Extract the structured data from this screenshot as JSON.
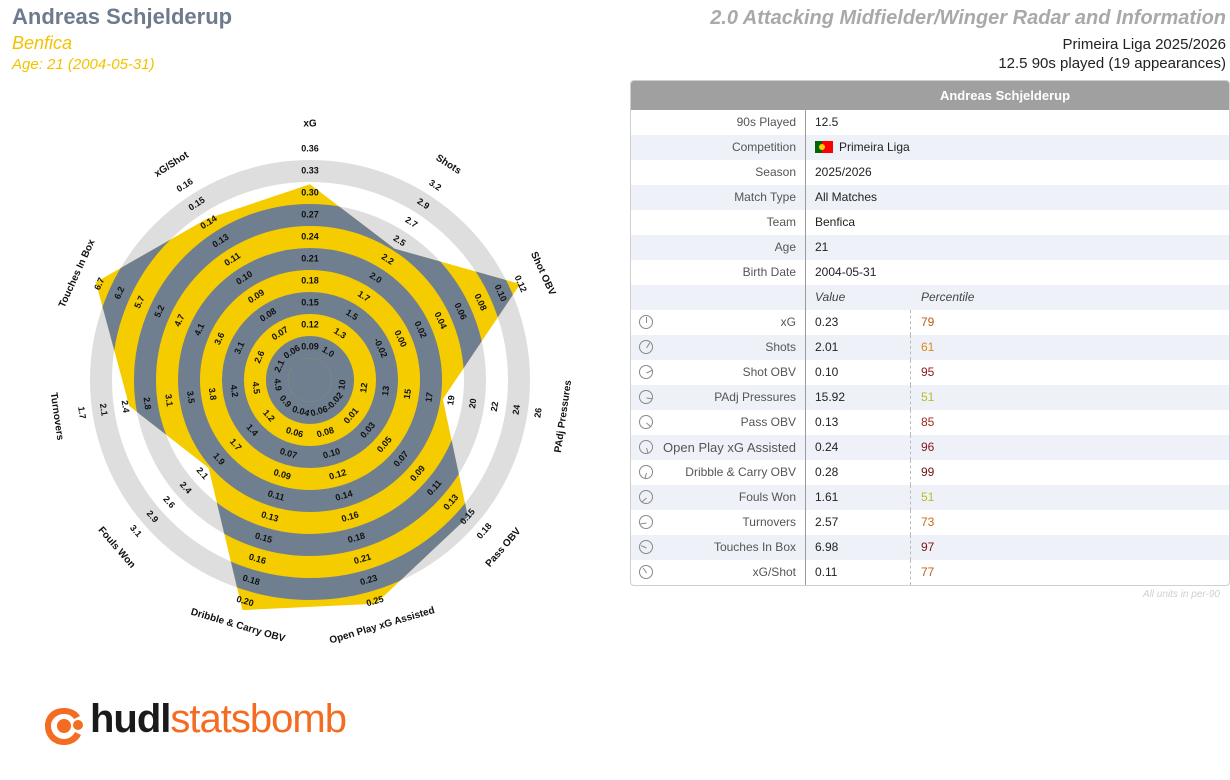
{
  "header": {
    "player_name": "Andreas Schjelderup",
    "team": "Benfica",
    "age_line": "Age: 21 (2004-05-31)",
    "radar_title": "2.0 Attacking Midfielder/Winger Radar and Information",
    "league_season": "Primeira Liga 2025/2026",
    "played": "12.5 90s played (19 appearances)"
  },
  "colors": {
    "player": "#f5cc00",
    "league": "#6f7f8f",
    "ring": "#dedede",
    "title": "#a9a9a9",
    "name": "#6d7b8d",
    "accent": "#f36c21"
  },
  "chart_data": {
    "type": "radar",
    "series": [
      {
        "name": "Andreas Schjelderup",
        "percentiles": [
          79,
          61,
          95,
          51,
          85,
          96,
          99,
          51,
          73,
          97,
          77
        ]
      }
    ],
    "axes": [
      {
        "label": "xG",
        "ticks": [
          "0.09",
          "0.12",
          "0.15",
          "0.18",
          "0.21",
          "0.24",
          "0.27",
          "0.30",
          "0.33",
          "0.36"
        ],
        "value": 0.23
      },
      {
        "label": "Shots",
        "ticks": [
          "1.0",
          "1.3",
          "1.5",
          "1.7",
          "2.0",
          "2.2",
          "2.5",
          "2.7",
          "2.9",
          "3.2"
        ],
        "value": 2.01
      },
      {
        "label": "Shot OBV",
        "ticks": [
          "-0.02",
          "0.00",
          "0.02",
          "0.04",
          "0.06",
          "0.08",
          "0.10",
          "0.12"
        ],
        "value": 0.1
      },
      {
        "label": "PAdj Pressures",
        "ticks": [
          "10",
          "12",
          "13",
          "15",
          "17",
          "19",
          "20",
          "22",
          "24",
          "26"
        ],
        "value": 15.92
      },
      {
        "label": "Pass OBV",
        "ticks": [
          "-0.02",
          "0.01",
          "0.03",
          "0.05",
          "0.07",
          "0.09",
          "0.11",
          "0.13",
          "0.15",
          "0.18"
        ],
        "value": 0.13
      },
      {
        "label": "Open Play xG Assisted",
        "ticks": [
          "0.06",
          "0.08",
          "0.10",
          "0.12",
          "0.14",
          "0.16",
          "0.18",
          "0.21",
          "0.23",
          "0.25"
        ],
        "value": 0.24
      },
      {
        "label": "Dribble & Carry OBV",
        "ticks": [
          "0.04",
          "0.06",
          "0.07",
          "0.09",
          "0.11",
          "0.13",
          "0.15",
          "0.16",
          "0.18",
          "0.20"
        ],
        "value": 0.28
      },
      {
        "label": "Fouls Won",
        "ticks": [
          "0.9",
          "1.2",
          "1.4",
          "1.7",
          "1.9",
          "2.1",
          "2.4",
          "2.6",
          "2.9",
          "3.1"
        ],
        "value": 1.61
      },
      {
        "label": "Turnovers",
        "ticks": [
          "4.9",
          "4.5",
          "4.2",
          "3.8",
          "3.5",
          "3.1",
          "2.8",
          "2.4",
          "2.1",
          "1.7"
        ],
        "value": 2.57
      },
      {
        "label": "Touches In Box",
        "ticks": [
          "2.1",
          "2.6",
          "3.1",
          "3.6",
          "4.1",
          "4.7",
          "5.2",
          "5.7",
          "6.2",
          "6.7"
        ],
        "value": 6.98
      },
      {
        "label": "xG/Shot",
        "ticks": [
          "0.06",
          "0.07",
          "0.08",
          "0.09",
          "0.10",
          "0.11",
          "0.13",
          "0.14",
          "0.15",
          "0.16"
        ],
        "value": 0.11
      }
    ],
    "league_average_percentile": 50
  },
  "table": {
    "header": "Andreas Schjelderup",
    "info": [
      {
        "label": "90s Played",
        "value": "12.5"
      },
      {
        "label": "Competition",
        "value": "Primeira Liga"
      },
      {
        "label": "Season",
        "value": "2025/2026"
      },
      {
        "label": "Match Type",
        "value": "All Matches"
      },
      {
        "label": "Team",
        "value": "Benfica"
      },
      {
        "label": "Age",
        "value": "21"
      },
      {
        "label": "Birth Date",
        "value": "2004-05-31"
      }
    ],
    "col_value": "Value",
    "col_percentile": "Percentile",
    "metrics": [
      {
        "label": "xG",
        "value": "0.23",
        "percentile": "79",
        "color": "#c05a14",
        "icon": "clock-0-icon"
      },
      {
        "label": "Shots",
        "value": "2.01",
        "percentile": "61",
        "color": "#d98a1c",
        "icon": "clock-1-icon"
      },
      {
        "label": "Shot OBV",
        "value": "0.10",
        "percentile": "95",
        "color": "#8a1818",
        "icon": "clock-2-icon"
      },
      {
        "label": "PAdj Pressures",
        "value": "15.92",
        "percentile": "51",
        "color": "#b8bc22",
        "icon": "clock-3-icon"
      },
      {
        "label": "Pass OBV",
        "value": "0.13",
        "percentile": "85",
        "color": "#a0281c",
        "icon": "clock-4-icon"
      },
      {
        "label": "Open Play xG Assisted",
        "value": "0.24",
        "percentile": "96",
        "color": "#841616",
        "icon": "clock-5-icon"
      },
      {
        "label": "Dribble & Carry OBV",
        "value": "0.28",
        "percentile": "99",
        "color": "#701010",
        "icon": "clock-6-icon"
      },
      {
        "label": "Fouls Won",
        "value": "1.61",
        "percentile": "51",
        "color": "#b8bc22",
        "icon": "clock-7-icon"
      },
      {
        "label": "Turnovers",
        "value": "2.57",
        "percentile": "73",
        "color": "#c96a18",
        "icon": "clock-8-icon"
      },
      {
        "label": "Touches In Box",
        "value": "6.98",
        "percentile": "97",
        "color": "#801414",
        "icon": "clock-9-icon"
      },
      {
        "label": "xG/Shot",
        "value": "0.11",
        "percentile": "77",
        "color": "#c46016",
        "icon": "clock-10-icon"
      }
    ],
    "footnote": "All units in per-90"
  },
  "logo": {
    "brand_a": "hudl",
    "brand_b": "statsbomb"
  }
}
